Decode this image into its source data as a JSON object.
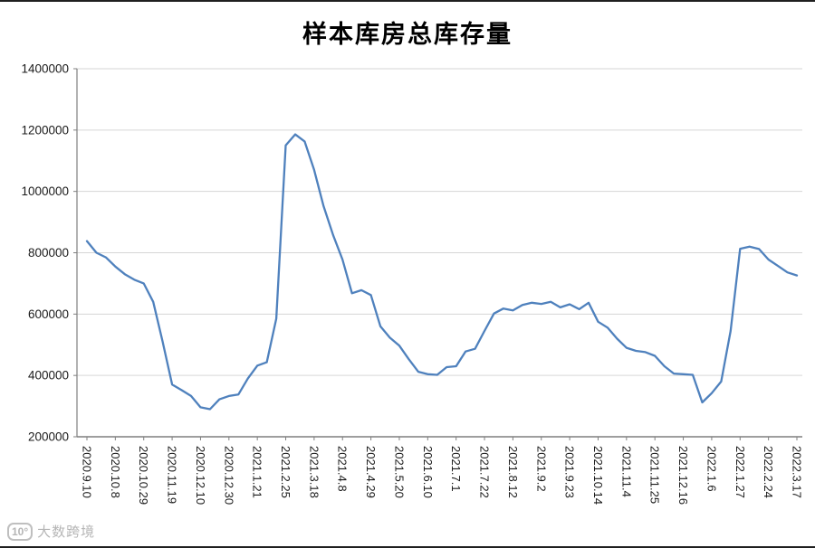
{
  "page": {
    "background": "#ffffff"
  },
  "chart_data": {
    "type": "line",
    "title": "样本库房总库存量",
    "line_color": "#4f81bd",
    "grid_color": "#d6d6d6",
    "axis_color": "#7f7f7f",
    "label_color": "#1a1a1a",
    "ylim": [
      200000,
      1400000
    ],
    "yticks": [
      200000,
      400000,
      600000,
      800000,
      1000000,
      1200000,
      1400000
    ],
    "x_tick_labels": [
      "2020.9.10",
      "2020.10.8",
      "2020.10.29",
      "2020.11.19",
      "2020.12.10",
      "2020.12.30",
      "2021.1.21",
      "2021.2.25",
      "2021.3.18",
      "2021.4.8",
      "2021.4.29",
      "2021.5.20",
      "2021.6.10",
      "2021.7.1",
      "2021.7.22",
      "2021.8.12",
      "2021.9.2",
      "2021.9.23",
      "2021.10.14",
      "2021.11.4",
      "2021.11.25",
      "2021.12.16",
      "2022.1.6",
      "2022.1.27",
      "2022.2.24",
      "2022.3.17"
    ],
    "points_per_label": 3,
    "values": [
      838000,
      800000,
      785000,
      755000,
      730000,
      712000,
      700000,
      640000,
      510000,
      370000,
      352000,
      333000,
      296000,
      290000,
      322000,
      333000,
      338000,
      390000,
      432000,
      443000,
      585000,
      1150000,
      1186000,
      1163000,
      1070000,
      952000,
      858000,
      778000,
      668000,
      678000,
      662000,
      560000,
      523000,
      497000,
      453000,
      412000,
      404000,
      402000,
      427000,
      430000,
      478000,
      487000,
      545000,
      602000,
      618000,
      612000,
      630000,
      637000,
      633000,
      640000,
      622000,
      632000,
      616000,
      637000,
      575000,
      556000,
      520000,
      490000,
      480000,
      476000,
      464000,
      430000,
      406000,
      404000,
      402000,
      312000,
      342000,
      380000,
      545000,
      813000,
      820000,
      812000,
      778000,
      757000,
      736000,
      726000
    ],
    "legend": "none",
    "grid": "horizontal"
  },
  "watermark": {
    "logo": "10°",
    "text": "大数跨境"
  }
}
